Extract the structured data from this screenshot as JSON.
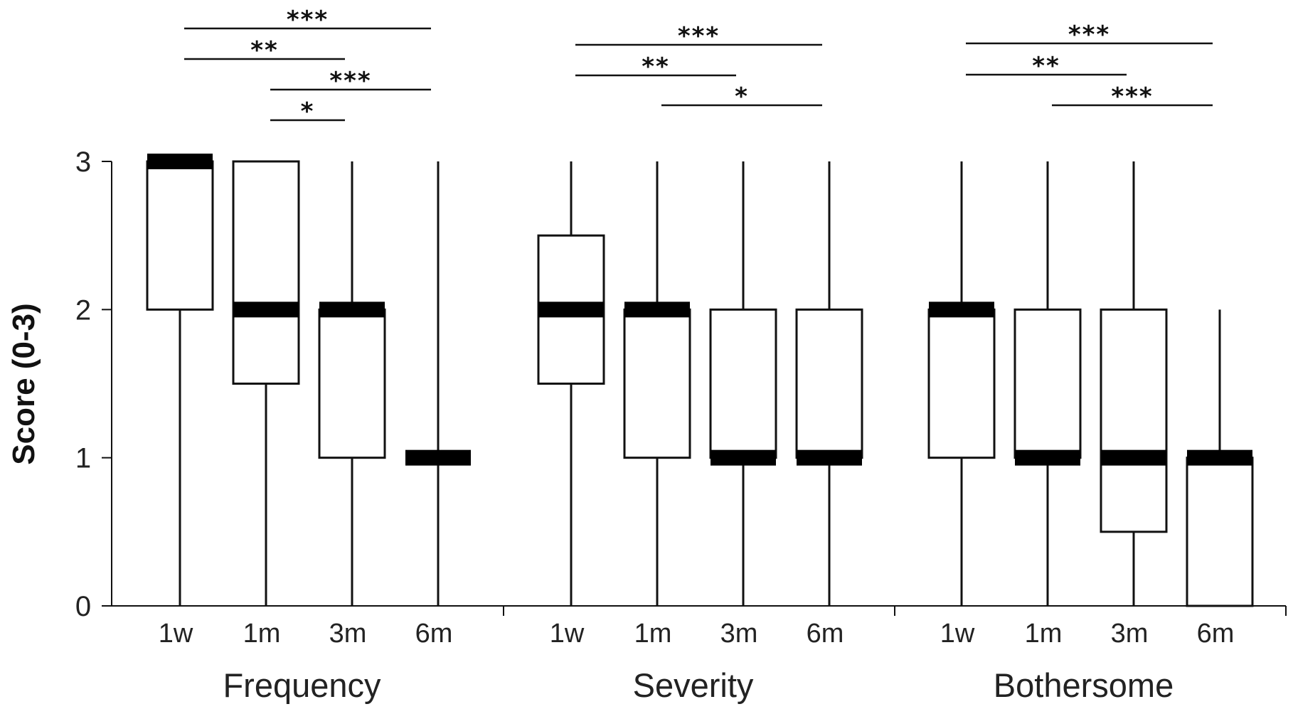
{
  "chart_data": {
    "type": "boxplot",
    "ylabel": "Score (0-3)",
    "ylim": [
      0,
      3
    ],
    "yticks": [
      0,
      1,
      2,
      3
    ],
    "grid": false,
    "groups": [
      {
        "name": "Frequency",
        "boxes": [
          {
            "label": "1w",
            "min": 0,
            "q1": 2,
            "median": 3,
            "q3": 3,
            "max": 3
          },
          {
            "label": "1m",
            "min": 0,
            "q1": 1.5,
            "median": 2,
            "q3": 3,
            "max": 3
          },
          {
            "label": "3m",
            "min": 0,
            "q1": 1,
            "median": 2,
            "q3": 2,
            "max": 3
          },
          {
            "label": "6m",
            "min": 0,
            "q1": 1,
            "median": 1,
            "q3": 1,
            "max": 3
          }
        ],
        "significance": [
          {
            "from": "1w",
            "to": "6m",
            "label": "***"
          },
          {
            "from": "1w",
            "to": "3m",
            "label": "**"
          },
          {
            "from": "1m",
            "to": "6m",
            "label": "***"
          },
          {
            "from": "1m",
            "to": "3m",
            "label": "*"
          }
        ]
      },
      {
        "name": "Severity",
        "boxes": [
          {
            "label": "1w",
            "min": 0,
            "q1": 1.5,
            "median": 2,
            "q3": 2.5,
            "max": 3
          },
          {
            "label": "1m",
            "min": 0,
            "q1": 1,
            "median": 2,
            "q3": 2,
            "max": 3
          },
          {
            "label": "3m",
            "min": 0,
            "q1": 1,
            "median": 1,
            "q3": 2,
            "max": 3
          },
          {
            "label": "6m",
            "min": 0,
            "q1": 1,
            "median": 1,
            "q3": 2,
            "max": 3
          }
        ],
        "significance": [
          {
            "from": "1w",
            "to": "6m",
            "label": "***"
          },
          {
            "from": "1w",
            "to": "3m",
            "label": "**"
          },
          {
            "from": "1m",
            "to": "6m",
            "label": "*"
          }
        ]
      },
      {
        "name": "Bothersome",
        "boxes": [
          {
            "label": "1w",
            "min": 0,
            "q1": 1,
            "median": 2,
            "q3": 2,
            "max": 3
          },
          {
            "label": "1m",
            "min": 0,
            "q1": 1,
            "median": 1,
            "q3": 2,
            "max": 3
          },
          {
            "label": "3m",
            "min": 0,
            "q1": 0.5,
            "median": 1,
            "q3": 2,
            "max": 3
          },
          {
            "label": "6m",
            "min": 0,
            "q1": 0,
            "median": 1,
            "q3": 1,
            "max": 2
          }
        ],
        "significance": [
          {
            "from": "1w",
            "to": "6m",
            "label": "***"
          },
          {
            "from": "1w",
            "to": "3m",
            "label": "**"
          },
          {
            "from": "1m",
            "to": "6m",
            "label": "***"
          }
        ]
      }
    ],
    "colors": {
      "box_fill": "#ffffff",
      "line": "#111111",
      "median": "#000000"
    }
  }
}
